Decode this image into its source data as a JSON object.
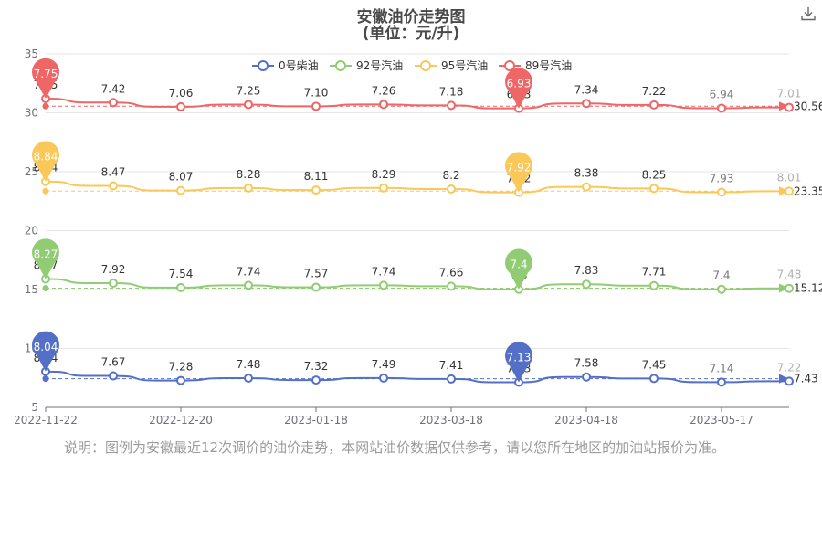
{
  "header": {
    "title": "安徽油价走势图",
    "subtitle": "(单位：元/升)"
  },
  "footer": {
    "note": "说明：图例为安徽最近12次调价的油价走势，本网站油价数据仅供参考，请以您所在地区的加油站报价为准。"
  },
  "icons": {
    "download": "download-icon"
  },
  "chart_data": {
    "type": "line",
    "title": "安徽油价走势图",
    "subtitle": "(单位：元/升)",
    "x_tick_labels": [
      "2022-11-22",
      "2022-12-20",
      "2023-01-18",
      "2023-03-18",
      "2023-04-18",
      "2023-05-17"
    ],
    "y_ticks": [
      5,
      10,
      15,
      20,
      25,
      30,
      35
    ],
    "ylim": [
      5,
      36
    ],
    "grid": true,
    "legend_position": "top-center",
    "point_count": 12,
    "series": [
      {
        "name": "0号柴油",
        "color": "#5470c6",
        "points": [
          8.04,
          7.67,
          7.28,
          7.48,
          7.32,
          7.49,
          7.41,
          7.13,
          7.58,
          7.45,
          7.14,
          7.22
        ],
        "point_labels": [
          "8.04",
          "7.67",
          "7.28",
          "7.48",
          "7.32",
          "7.49",
          "7.41",
          "7.13",
          "7.58",
          "7.45",
          "7.14",
          "7.22"
        ],
        "max": "8.04",
        "min": "7.13",
        "average": "7.43"
      },
      {
        "name": "92号汽油",
        "color": "#91cc75",
        "points": [
          8.27,
          7.92,
          7.54,
          7.74,
          7.57,
          7.74,
          7.66,
          7.4,
          7.83,
          7.71,
          7.4,
          7.48
        ],
        "point_labels": [
          "8.27",
          "7.92",
          "7.54",
          "7.74",
          "7.57",
          "7.74",
          "7.66",
          "7.4",
          "7.83",
          "7.71",
          "7.4",
          "7.48"
        ],
        "max": "8.27",
        "min": "7.4",
        "average": "15.12"
      },
      {
        "name": "95号汽油",
        "color": "#fac858",
        "points": [
          8.84,
          8.47,
          8.07,
          8.28,
          8.11,
          8.29,
          8.2,
          7.92,
          8.38,
          8.25,
          7.93,
          8.01
        ],
        "point_labels": [
          "8.84",
          "8.47",
          "8.07",
          "8.28",
          "8.11",
          "8.29",
          "8.2",
          "7.92",
          "8.38",
          "8.25",
          "7.93",
          "8.01"
        ],
        "max": "8.84",
        "min": "7.92",
        "average": "23.35"
      },
      {
        "name": "89号汽油",
        "color": "#ee6666",
        "points": [
          7.75,
          7.42,
          7.06,
          7.25,
          7.1,
          7.26,
          7.18,
          6.93,
          7.34,
          7.22,
          6.94,
          7.01
        ],
        "point_labels": [
          "7.75",
          "7.42",
          "7.06",
          "7.25",
          "7.10",
          "7.26",
          "7.18",
          "6.93",
          "7.34",
          "7.22",
          "6.94",
          "7.01"
        ],
        "max": "7.75",
        "min": "6.93",
        "average": "30.56"
      }
    ]
  }
}
